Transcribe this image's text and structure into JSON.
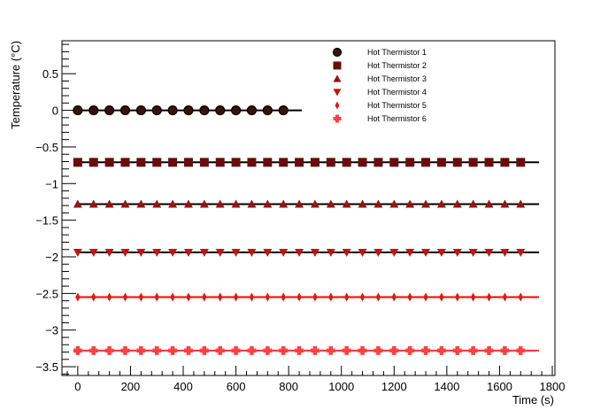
{
  "chart_data": {
    "type": "scatter",
    "title": "",
    "xlabel": "Time (s)",
    "ylabel": "Temperature (°C)",
    "xlim": [
      -60,
      1810
    ],
    "ylim": [
      -3.62,
      0.95
    ],
    "x_ticks": [
      "0",
      "200",
      "400",
      "600",
      "800",
      "1000",
      "1200",
      "1400",
      "1600",
      "1800"
    ],
    "y_ticks": [
      "0.5",
      "0",
      "−0.5",
      "−1",
      "−1.5",
      "−2",
      "−2.5",
      "−3",
      "−3.5"
    ],
    "legend_position": "top-right",
    "grid": false,
    "series": [
      {
        "name": "Hot Thermistor 1",
        "marker": "circle",
        "color": "#3a1010",
        "line_color": "#000000",
        "y": 0.0,
        "x_start": 0,
        "x_end": 850,
        "x_step": 60
      },
      {
        "name": "Hot Thermistor 2",
        "marker": "square",
        "color": "#6b0c0c",
        "line_color": "#000000",
        "y": -0.71,
        "x_start": 0,
        "x_end": 1750,
        "x_step": 60
      },
      {
        "name": "Hot Thermistor 3",
        "marker": "triangle-up",
        "color": "#9a1212",
        "line_color": "#000000",
        "y": -1.28,
        "x_start": 0,
        "x_end": 1750,
        "x_step": 60
      },
      {
        "name": "Hot Thermistor 4",
        "marker": "triangle-down",
        "color": "#c01515",
        "line_color": "#000000",
        "y": -1.94,
        "x_start": 0,
        "x_end": 1750,
        "x_step": 60
      },
      {
        "name": "Hot Thermistor 5",
        "marker": "diamond",
        "color": "#e01818",
        "line_color": "#ff0000",
        "y": -2.55,
        "x_start": 0,
        "x_end": 1750,
        "x_step": 60
      },
      {
        "name": "Hot Thermistor 6",
        "marker": "cross",
        "color": "#ff4040",
        "line_color": "#ff3030",
        "y": -3.28,
        "x_start": 0,
        "x_end": 1750,
        "x_step": 60
      }
    ]
  }
}
